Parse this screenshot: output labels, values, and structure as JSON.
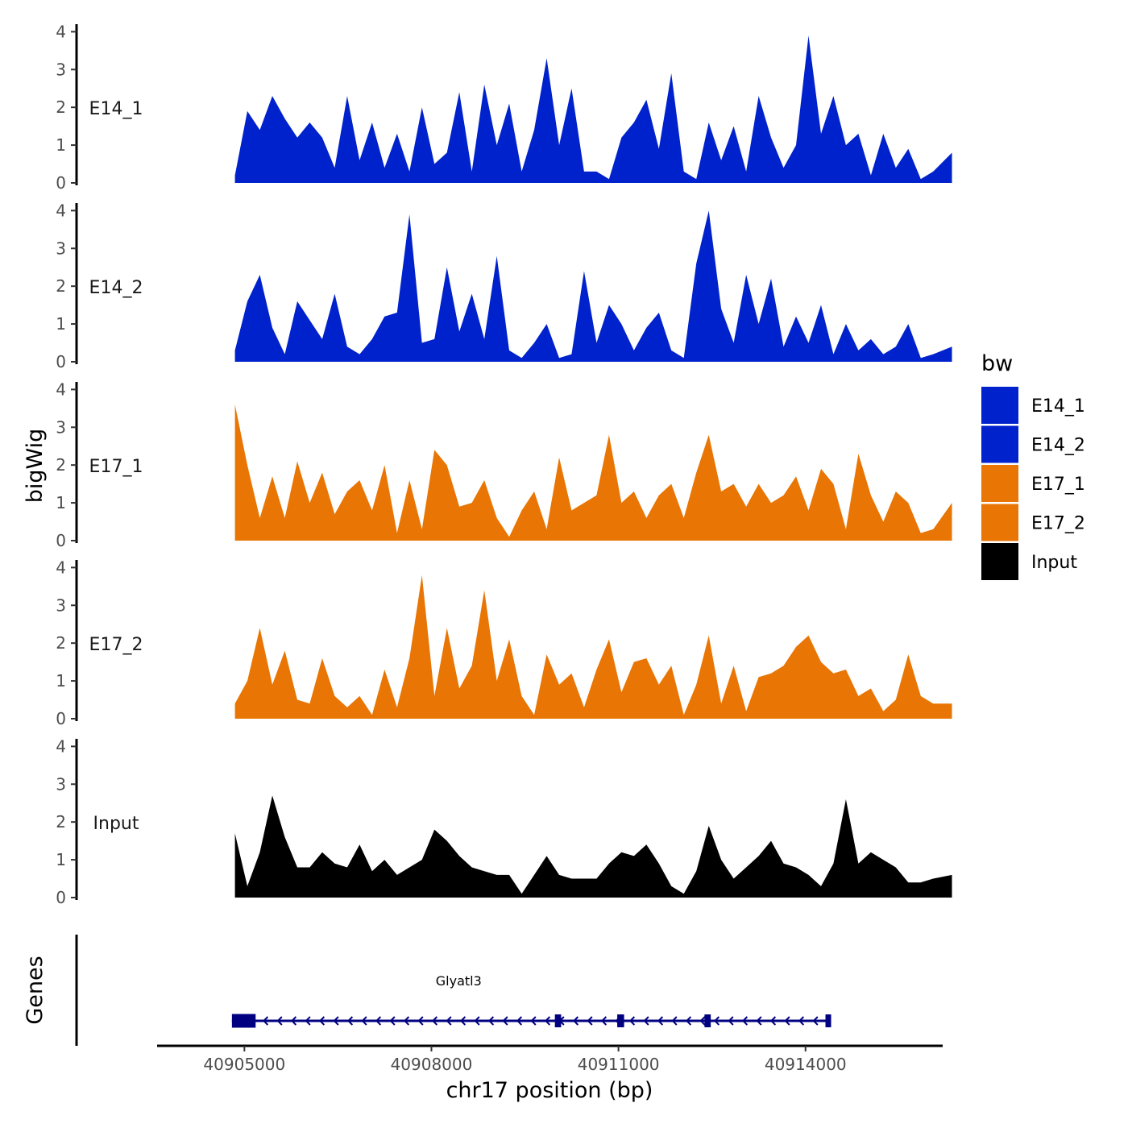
{
  "chart_data": {
    "type": "area",
    "title": "",
    "ylabel": "bigWig",
    "xlabel": "chr17 position (bp)",
    "ylim": [
      0,
      4.2
    ],
    "yticks": [
      0,
      1,
      2,
      3,
      4
    ],
    "xlim": [
      40903600,
      40916200
    ],
    "xticks": [
      40905000,
      40908000,
      40911000,
      40914000
    ],
    "xtick_labels": [
      "40905000",
      "40908000",
      "40911000",
      "40914000"
    ],
    "legend": {
      "title": "bw",
      "entries": [
        {
          "name": "E14_1",
          "color": "#0022CC"
        },
        {
          "name": "E14_2",
          "color": "#0022CC"
        },
        {
          "name": "E17_1",
          "color": "#E87504"
        },
        {
          "name": "E17_2",
          "color": "#E87504"
        },
        {
          "name": "Input",
          "color": "#000000"
        }
      ]
    },
    "x": [
      40904848,
      40905048,
      40905248,
      40905448,
      40905648,
      40905848,
      40906048,
      40906248,
      40906448,
      40906648,
      40906848,
      40907048,
      40907248,
      40907448,
      40907648,
      40907848,
      40908048,
      40908248,
      40908448,
      40908648,
      40908848,
      40909048,
      40909248,
      40909448,
      40909648,
      40909848,
      40910048,
      40910248,
      40910448,
      40910648,
      40910848,
      40911048,
      40911248,
      40911448,
      40911648,
      40911848,
      40912048,
      40912248,
      40912448,
      40912648,
      40912848,
      40913048,
      40913248,
      40913448,
      40913648,
      40913848,
      40914048,
      40914248,
      40914448,
      40914648,
      40914848,
      40915048,
      40915248,
      40915448,
      40915648,
      40915848,
      40916048,
      40916348
    ],
    "series": [
      {
        "name": "E14_1",
        "color": "#0022CC",
        "values": [
          0.2,
          1.9,
          1.4,
          2.3,
          1.7,
          1.2,
          1.6,
          1.2,
          0.4,
          2.3,
          0.6,
          1.6,
          0.4,
          1.3,
          0.3,
          2.0,
          0.5,
          0.8,
          2.4,
          0.3,
          2.6,
          1.0,
          2.1,
          0.3,
          1.4,
          3.3,
          1.0,
          2.5,
          0.3,
          0.3,
          0.1,
          1.2,
          1.6,
          2.2,
          0.9,
          2.9,
          0.3,
          0.1,
          1.6,
          0.6,
          1.5,
          0.3,
          2.3,
          1.2,
          0.4,
          1.0,
          3.9,
          1.3,
          2.3,
          1.0,
          1.3,
          0.2,
          1.3,
          0.4,
          0.9,
          0.1,
          0.3,
          0.8
        ]
      },
      {
        "name": "E14_2",
        "color": "#0022CC",
        "values": [
          0.3,
          1.6,
          2.3,
          0.9,
          0.2,
          1.6,
          1.1,
          0.6,
          1.8,
          0.4,
          0.2,
          0.6,
          1.2,
          1.3,
          3.9,
          0.5,
          0.6,
          2.5,
          0.8,
          1.8,
          0.6,
          2.8,
          0.3,
          0.1,
          0.5,
          1.0,
          0.1,
          0.2,
          2.4,
          0.5,
          1.5,
          1.0,
          0.3,
          0.9,
          1.3,
          0.3,
          0.1,
          2.6,
          4.0,
          1.4,
          0.5,
          2.3,
          1.0,
          2.2,
          0.4,
          1.2,
          0.5,
          1.5,
          0.2,
          1.0,
          0.3,
          0.6,
          0.2,
          0.4,
          1.0,
          0.1,
          0.2,
          0.4
        ]
      },
      {
        "name": "E17_1",
        "color": "#E87504",
        "values": [
          3.6,
          2.0,
          0.6,
          1.7,
          0.6,
          2.1,
          1.0,
          1.8,
          0.7,
          1.3,
          1.6,
          0.8,
          2.0,
          0.2,
          1.6,
          0.3,
          2.4,
          2.0,
          0.9,
          1.0,
          1.6,
          0.6,
          0.1,
          0.8,
          1.3,
          0.3,
          2.2,
          0.8,
          1.0,
          1.2,
          2.8,
          1.0,
          1.3,
          0.6,
          1.2,
          1.5,
          0.6,
          1.8,
          2.8,
          1.3,
          1.5,
          0.9,
          1.5,
          1.0,
          1.2,
          1.7,
          0.8,
          1.9,
          1.5,
          0.3,
          2.3,
          1.2,
          0.5,
          1.3,
          1.0,
          0.2,
          0.3,
          1.0
        ]
      },
      {
        "name": "E17_2",
        "color": "#E87504",
        "values": [
          0.4,
          1.0,
          2.4,
          0.9,
          1.8,
          0.5,
          0.4,
          1.6,
          0.6,
          0.3,
          0.6,
          0.1,
          1.3,
          0.3,
          1.6,
          3.8,
          0.6,
          2.4,
          0.8,
          1.4,
          3.4,
          1.0,
          2.1,
          0.6,
          0.1,
          1.7,
          0.9,
          1.2,
          0.3,
          1.3,
          2.1,
          0.7,
          1.5,
          1.6,
          0.9,
          1.4,
          0.1,
          0.9,
          2.2,
          0.4,
          1.4,
          0.2,
          1.1,
          1.2,
          1.4,
          1.9,
          2.2,
          1.5,
          1.2,
          1.3,
          0.6,
          0.8,
          0.2,
          0.5,
          1.7,
          0.6,
          0.4,
          0.4
        ]
      },
      {
        "name": "Input",
        "color": "#000000",
        "values": [
          1.7,
          0.3,
          1.2,
          2.7,
          1.6,
          0.8,
          0.8,
          1.2,
          0.9,
          0.8,
          1.4,
          0.7,
          1.0,
          0.6,
          0.8,
          1.0,
          1.8,
          1.5,
          1.1,
          0.8,
          0.7,
          0.6,
          0.6,
          0.1,
          0.6,
          1.1,
          0.6,
          0.5,
          0.5,
          0.5,
          0.9,
          1.2,
          1.1,
          1.4,
          0.9,
          0.3,
          0.1,
          0.7,
          1.9,
          1.0,
          0.5,
          0.8,
          1.1,
          1.5,
          0.9,
          0.8,
          0.6,
          0.3,
          0.9,
          2.6,
          0.9,
          1.2,
          1.0,
          0.8,
          0.4,
          0.4,
          0.5,
          0.6
        ]
      }
    ],
    "genes_track": {
      "label": "Genes",
      "genes": [
        {
          "name": "Glyatl3",
          "start": 40904800,
          "end": 40914400,
          "strand": "-",
          "exons": [
            [
              40904800,
              40905180
            ],
            [
              40909980,
              40910080
            ],
            [
              40910980,
              40911090
            ],
            [
              40912380,
              40912480
            ],
            [
              40914320,
              40914400
            ]
          ]
        }
      ]
    }
  }
}
